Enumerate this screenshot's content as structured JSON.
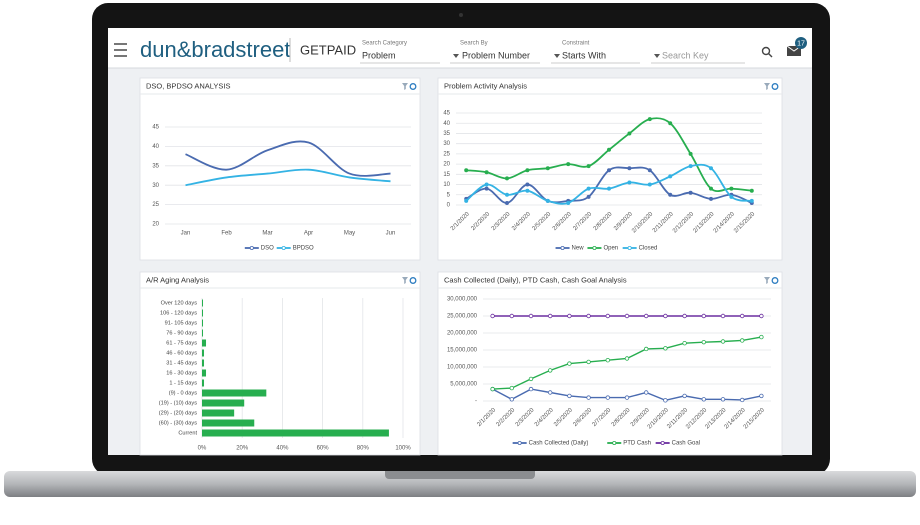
{
  "header": {
    "logo": "dun&bradstreet",
    "product": "GETPAID",
    "fields": [
      {
        "label": "Search Category",
        "value": "Problem"
      },
      {
        "label": "Search By",
        "value": "Problem Number"
      },
      {
        "label": "Constraint",
        "value": "Starts With"
      }
    ],
    "search_placeholder": "Search Key",
    "badge": "17"
  },
  "chart_data": [
    {
      "type": "line",
      "title": "DSO, BPDSO ANALYSIS",
      "smooth": true,
      "markers": false,
      "grid": true,
      "categories": [
        "Jan",
        "Feb",
        "Mar",
        "Apr",
        "May",
        "Jun"
      ],
      "ylim": [
        20,
        45
      ],
      "yticks": [
        20,
        25,
        30,
        35,
        40,
        45
      ],
      "series": [
        {
          "name": "DSO",
          "color": "#4a6bb0",
          "values": [
            38,
            34,
            39,
            41,
            33,
            33
          ]
        },
        {
          "name": "BPDSO",
          "color": "#34b3e4",
          "values": [
            30,
            32,
            33,
            34,
            32,
            31
          ]
        }
      ]
    },
    {
      "type": "line",
      "title": "Problem Activity Analysis",
      "smooth": true,
      "markers": true,
      "grid": true,
      "categories": [
        "2/1/2020",
        "2/2/2020",
        "2/3/2020",
        "2/4/2020",
        "2/5/2020",
        "2/6/2020",
        "2/7/2020",
        "2/8/2020",
        "2/9/2020",
        "2/10/2020",
        "2/11/2020",
        "2/12/2020",
        "2/13/2020",
        "2/14/2020",
        "2/15/2020"
      ],
      "ylim": [
        0,
        45
      ],
      "yticks": [
        0,
        5,
        10,
        15,
        20,
        25,
        30,
        35,
        40,
        45
      ],
      "series": [
        {
          "name": "New",
          "color": "#4a6bb0",
          "values": [
            3,
            8,
            1,
            10,
            2,
            2,
            4,
            17,
            18,
            17,
            5,
            6,
            3,
            5,
            1
          ]
        },
        {
          "name": "Open",
          "color": "#27ae4f",
          "values": [
            17,
            16,
            13,
            17,
            18,
            20,
            19,
            27,
            35,
            42,
            40,
            25,
            8,
            8,
            7
          ]
        },
        {
          "name": "Closed",
          "color": "#34b3e4",
          "values": [
            2,
            10,
            5,
            7,
            2,
            1,
            8,
            8,
            11,
            10,
            14,
            19,
            18,
            4,
            2
          ]
        }
      ]
    },
    {
      "type": "bar",
      "orientation": "horizontal",
      "title": "A/R Aging Analysis",
      "grid": true,
      "color": "#27ae4f",
      "categories": [
        "Over 120 days",
        "106 - 120 days",
        "91- 105 days",
        "76 - 90 days",
        "61 - 75 days",
        "46 - 60 days",
        "31 - 45 days",
        "16 - 30 days",
        "1 - 15 days",
        "(9) - 0 days",
        "(19) - (10) days",
        "(29) - (20) days",
        "(60) - (30) days",
        "Current"
      ],
      "values": [
        0.5,
        0.5,
        0.5,
        0.5,
        2,
        1,
        1,
        2,
        1,
        32,
        21,
        16,
        26,
        93
      ],
      "xlim": [
        0,
        100
      ],
      "xticks": [
        {
          "value": 0,
          "label": "0%"
        },
        {
          "value": 20,
          "label": "20%"
        },
        {
          "value": 40,
          "label": "40%"
        },
        {
          "value": 60,
          "label": "60%"
        },
        {
          "value": 80,
          "label": "80%"
        },
        {
          "value": 100,
          "label": "100%"
        }
      ]
    },
    {
      "type": "line",
      "title": "Cash Collected (Daily), PTD Cash, Cash Goal Analysis",
      "smooth": false,
      "markers": true,
      "grid": true,
      "categories": [
        "2/1/2020",
        "2/2/2020",
        "2/3/2020",
        "2/4/2020",
        "2/5/2020",
        "2/6/2020",
        "2/7/2020",
        "2/8/2020",
        "2/9/2020",
        "2/10/2020",
        "2/11/2020",
        "2/12/2020",
        "2/13/2020",
        "2/14/2020",
        "2/15/2020"
      ],
      "ylim": [
        0,
        30000000
      ],
      "yticks": [
        {
          "value": 0,
          "label": "-"
        },
        {
          "value": 5000000,
          "label": "5,000,000"
        },
        {
          "value": 10000000,
          "label": "10,000,000"
        },
        {
          "value": 15000000,
          "label": "15,000,000"
        },
        {
          "value": 20000000,
          "label": "20,000,000"
        },
        {
          "value": 25000000,
          "label": "25,000,000"
        },
        {
          "value": 30000000,
          "label": "30,000,000"
        }
      ],
      "series": [
        {
          "name": "Cash Collected (Daily)",
          "color": "#4a6bb0",
          "values": [
            3500000,
            500000,
            3500000,
            2500000,
            1500000,
            1000000,
            1000000,
            1000000,
            2500000,
            200000,
            1500000,
            500000,
            500000,
            300000,
            1500000
          ]
        },
        {
          "name": "PTD Cash",
          "color": "#27ae4f",
          "values": [
            3500000,
            3800000,
            6500000,
            9000000,
            11000000,
            11500000,
            12000000,
            12500000,
            15300000,
            15500000,
            17000000,
            17300000,
            17500000,
            17800000,
            18800000
          ]
        },
        {
          "name": "Cash Goal",
          "color": "#6b2fa0",
          "values": [
            25000000,
            25000000,
            25000000,
            25000000,
            25000000,
            25000000,
            25000000,
            25000000,
            25000000,
            25000000,
            25000000,
            25000000,
            25000000,
            25000000,
            25000000
          ]
        }
      ]
    }
  ]
}
